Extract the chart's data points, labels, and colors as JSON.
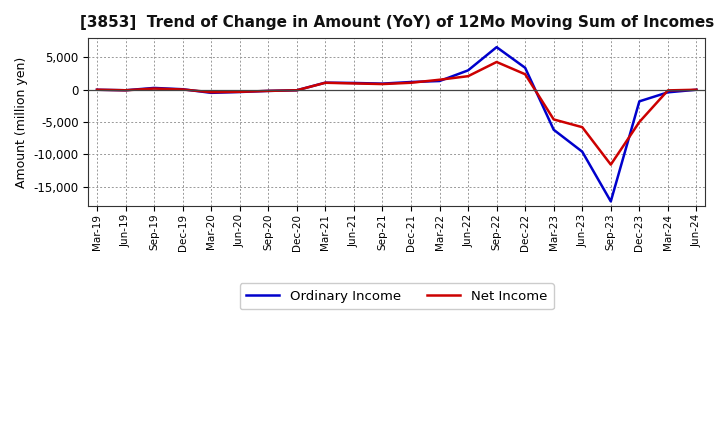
{
  "title": "[3853]  Trend of Change in Amount (YoY) of 12Mo Moving Sum of Incomes",
  "ylabel": "Amount (million yen)",
  "x_labels": [
    "Mar-19",
    "Jun-19",
    "Sep-19",
    "Dec-19",
    "Mar-20",
    "Jun-20",
    "Sep-20",
    "Dec-20",
    "Mar-21",
    "Jun-21",
    "Sep-21",
    "Dec-21",
    "Mar-22",
    "Jun-22",
    "Sep-22",
    "Dec-22",
    "Mar-23",
    "Jun-23",
    "Sep-23",
    "Dec-23",
    "Mar-24",
    "Jun-24"
  ],
  "ordinary_income": [
    0,
    -80,
    280,
    80,
    -480,
    -350,
    -180,
    -80,
    1100,
    1050,
    950,
    1200,
    1350,
    3000,
    6600,
    3400,
    -6200,
    -9600,
    -17300,
    -1800,
    -400,
    0
  ],
  "net_income": [
    0,
    -80,
    180,
    40,
    -380,
    -320,
    -180,
    -80,
    1080,
    980,
    880,
    1080,
    1550,
    2100,
    4300,
    2400,
    -4600,
    -5800,
    -11600,
    -5000,
    -100,
    0
  ],
  "ordinary_income_color": "#0000cc",
  "net_income_color": "#cc0000",
  "ylim": [
    -18000,
    8000
  ],
  "yticks": [
    -15000,
    -10000,
    -5000,
    0,
    5000
  ],
  "background_color": "#ffffff",
  "plot_bg_color": "#ffffff",
  "grid_color": "#999999",
  "legend_labels": [
    "Ordinary Income",
    "Net Income"
  ]
}
